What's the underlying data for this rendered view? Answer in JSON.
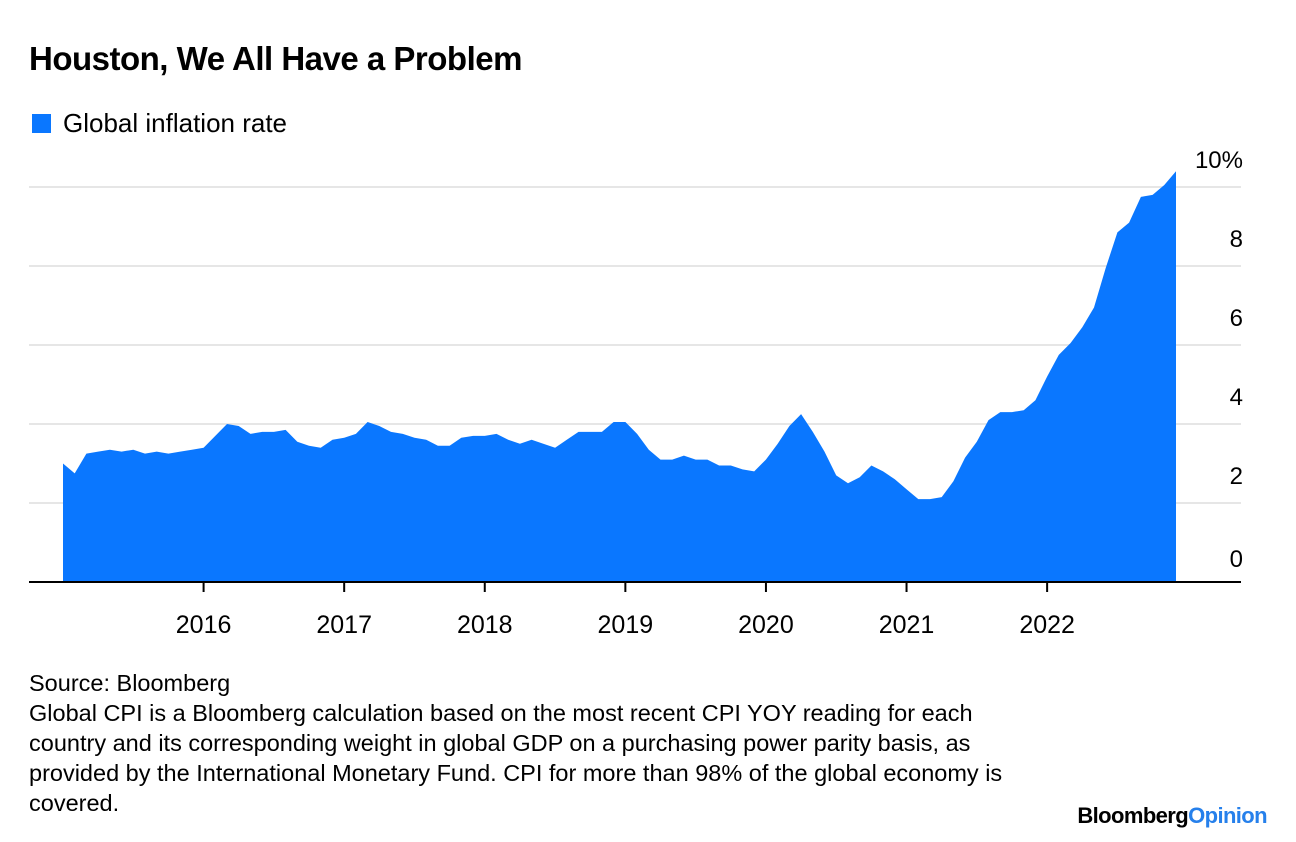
{
  "header": {
    "title": "Houston, We All Have a Problem",
    "legend_label": "Global inflation rate"
  },
  "footer": {
    "source": "Source: Bloomberg",
    "note": "Global CPI is a Bloomberg calculation based on the most recent CPI YOY reading for each country and its corresponding weight in global GDP on a purchasing power parity basis, as provided by the International Monetary Fund. CPI for more than 98% of the global economy is covered.",
    "logo_part1": "Bloomberg",
    "logo_part2": "Opinion"
  },
  "colors": {
    "series": "#0a77ff",
    "grid": "#e6e6e6",
    "axis": "#000000",
    "logo_accent": "#2680eb"
  },
  "chart_data": {
    "type": "area",
    "title": "Houston, We All Have a Problem",
    "xlabel": "",
    "ylabel": "",
    "ylim": [
      0,
      10
    ],
    "y_ticks": [
      0,
      2,
      4,
      6,
      8,
      10
    ],
    "y_tick_labels": [
      "0",
      "2",
      "4",
      "6",
      "8",
      "10%"
    ],
    "x_ticks": [
      "2016",
      "2017",
      "2018",
      "2019",
      "2020",
      "2021",
      "2022"
    ],
    "x_range": [
      "2015-01",
      "2022-12"
    ],
    "grid": true,
    "legend_position": "top-left",
    "series": [
      {
        "name": "Global inflation rate",
        "x": [
          "2015-01",
          "2015-02",
          "2015-03",
          "2015-04",
          "2015-05",
          "2015-06",
          "2015-07",
          "2015-08",
          "2015-09",
          "2015-10",
          "2015-11",
          "2015-12",
          "2016-01",
          "2016-02",
          "2016-03",
          "2016-04",
          "2016-05",
          "2016-06",
          "2016-07",
          "2016-08",
          "2016-09",
          "2016-10",
          "2016-11",
          "2016-12",
          "2017-01",
          "2017-02",
          "2017-03",
          "2017-04",
          "2017-05",
          "2017-06",
          "2017-07",
          "2017-08",
          "2017-09",
          "2017-10",
          "2017-11",
          "2017-12",
          "2018-01",
          "2018-02",
          "2018-03",
          "2018-04",
          "2018-05",
          "2018-06",
          "2018-07",
          "2018-08",
          "2018-09",
          "2018-10",
          "2018-11",
          "2018-12",
          "2019-01",
          "2019-02",
          "2019-03",
          "2019-04",
          "2019-05",
          "2019-06",
          "2019-07",
          "2019-08",
          "2019-09",
          "2019-10",
          "2019-11",
          "2019-12",
          "2020-01",
          "2020-02",
          "2020-03",
          "2020-04",
          "2020-05",
          "2020-06",
          "2020-07",
          "2020-08",
          "2020-09",
          "2020-10",
          "2020-11",
          "2020-12",
          "2021-01",
          "2021-02",
          "2021-03",
          "2021-04",
          "2021-05",
          "2021-06",
          "2021-07",
          "2021-08",
          "2021-09",
          "2021-10",
          "2021-11",
          "2021-12",
          "2022-01",
          "2022-02",
          "2022-03",
          "2022-04",
          "2022-05",
          "2022-06",
          "2022-07",
          "2022-08",
          "2022-09",
          "2022-10",
          "2022-11",
          "2022-12"
        ],
        "values": [
          3.0,
          2.75,
          3.25,
          3.3,
          3.35,
          3.3,
          3.35,
          3.25,
          3.3,
          3.25,
          3.3,
          3.35,
          3.4,
          3.7,
          4.0,
          3.95,
          3.75,
          3.8,
          3.8,
          3.85,
          3.55,
          3.45,
          3.4,
          3.6,
          3.65,
          3.75,
          4.05,
          3.95,
          3.8,
          3.75,
          3.65,
          3.6,
          3.45,
          3.45,
          3.65,
          3.7,
          3.7,
          3.75,
          3.6,
          3.5,
          3.6,
          3.5,
          3.4,
          3.6,
          3.8,
          3.8,
          3.8,
          4.05,
          4.05,
          3.75,
          3.35,
          3.1,
          3.1,
          3.2,
          3.1,
          3.1,
          2.95,
          2.95,
          2.85,
          2.8,
          3.1,
          3.5,
          3.95,
          4.25,
          3.8,
          3.3,
          2.7,
          2.5,
          2.65,
          2.95,
          2.8,
          2.6,
          2.35,
          2.1,
          2.1,
          2.15,
          2.55,
          3.15,
          3.55,
          4.1,
          4.3,
          4.3,
          4.35,
          4.6,
          5.2,
          5.75,
          6.05,
          6.45,
          6.95,
          7.95,
          8.85,
          9.1,
          9.75,
          9.8,
          10.05,
          10.4
        ]
      }
    ]
  }
}
